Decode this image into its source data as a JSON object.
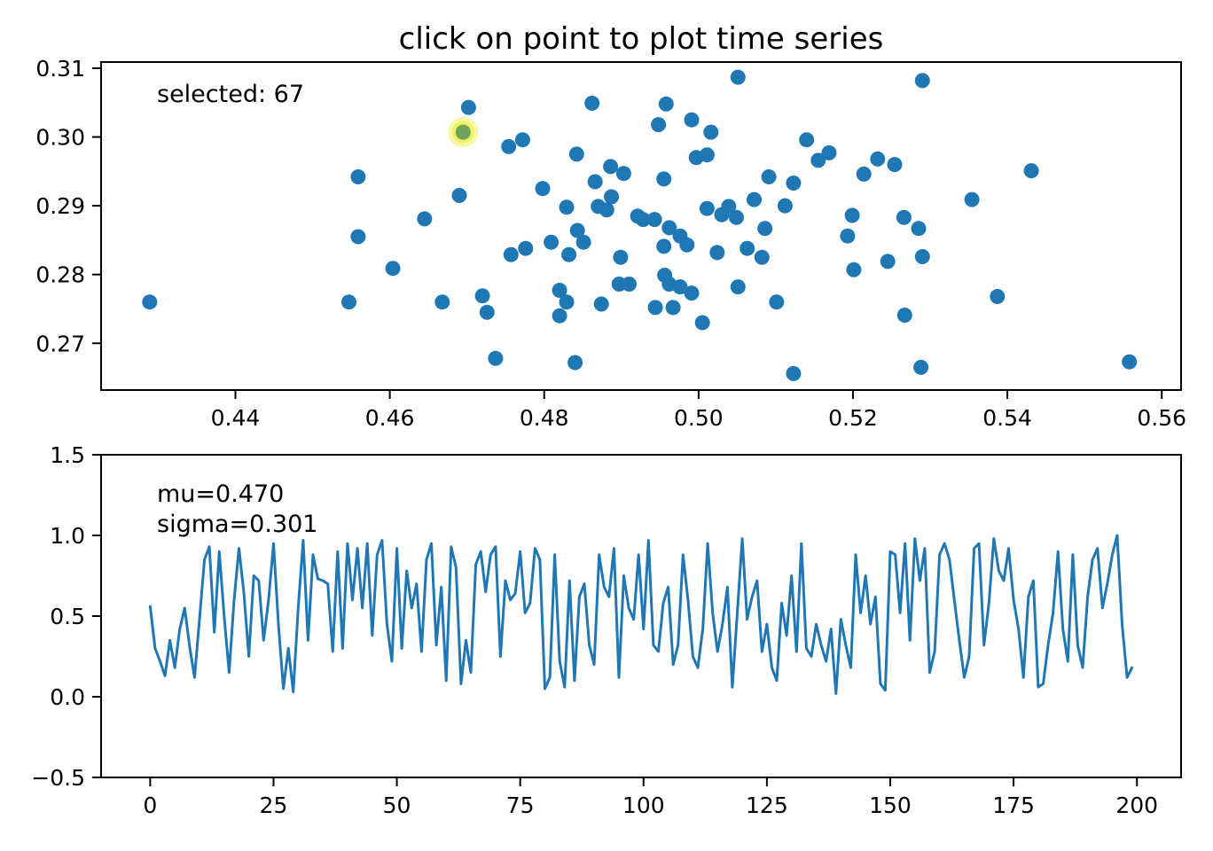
{
  "style": {
    "background": "#ffffff",
    "axis_color": "#000000",
    "text_color": "#000000"
  },
  "chart_data": [
    {
      "type": "scatter",
      "title": "click on point to plot time series",
      "annotation": "selected: 67",
      "selected_index": 67,
      "marker_color": "#1f77b4",
      "highlight": {
        "halo_outer_color": "#f7f9a8",
        "halo_inner_color": "#f0f262",
        "point_color": "#6fa35e"
      },
      "selected_point": {
        "x": 0.4695,
        "y": 0.3007
      },
      "xlim": [
        0.4226,
        0.5625
      ],
      "ylim": [
        0.2632,
        0.3109
      ],
      "xticks": [
        0.44,
        0.46,
        0.48,
        0.5,
        0.52,
        0.54,
        0.56
      ],
      "xtick_labels": [
        "0.44",
        "0.46",
        "0.48",
        "0.50",
        "0.52",
        "0.54",
        "0.56"
      ],
      "yticks": [
        0.27,
        0.28,
        0.29,
        0.3,
        0.31
      ],
      "ytick_labels": [
        "0.27",
        "0.28",
        "0.29",
        "0.30",
        "0.31"
      ],
      "points": [
        [
          0.4289,
          0.276
        ],
        [
          0.4559,
          0.2942
        ],
        [
          0.4559,
          0.2855
        ],
        [
          0.4547,
          0.276
        ],
        [
          0.4604,
          0.2809
        ],
        [
          0.4645,
          0.2881
        ],
        [
          0.4668,
          0.276
        ],
        [
          0.469,
          0.2915
        ],
        [
          0.4702,
          0.3043
        ],
        [
          0.5051,
          0.3087
        ],
        [
          0.4862,
          0.3049
        ],
        [
          0.4958,
          0.3048
        ],
        [
          0.4948,
          0.3018
        ],
        [
          0.4991,
          0.3025
        ],
        [
          0.5016,
          0.3007
        ],
        [
          0.4754,
          0.2986
        ],
        [
          0.4772,
          0.2996
        ],
        [
          0.4842,
          0.2975
        ],
        [
          0.514,
          0.2996
        ],
        [
          0.5155,
          0.2966
        ],
        [
          0.5169,
          0.2977
        ],
        [
          0.4886,
          0.2957
        ],
        [
          0.4903,
          0.2947
        ],
        [
          0.4866,
          0.2935
        ],
        [
          0.4955,
          0.2939
        ],
        [
          0.4997,
          0.297
        ],
        [
          0.5011,
          0.2974
        ],
        [
          0.4798,
          0.2925
        ],
        [
          0.5091,
          0.2942
        ],
        [
          0.5123,
          0.2933
        ],
        [
          0.4887,
          0.2913
        ],
        [
          0.4829,
          0.2898
        ],
        [
          0.487,
          0.2899
        ],
        [
          0.4881,
          0.2894
        ],
        [
          0.4921,
          0.2885
        ],
        [
          0.4928,
          0.288
        ],
        [
          0.4943,
          0.288
        ],
        [
          0.5011,
          0.2896
        ],
        [
          0.503,
          0.2887
        ],
        [
          0.5039,
          0.2899
        ],
        [
          0.5049,
          0.2883
        ],
        [
          0.5072,
          0.2909
        ],
        [
          0.5112,
          0.29
        ],
        [
          0.4843,
          0.2864
        ],
        [
          0.4851,
          0.2847
        ],
        [
          0.4962,
          0.2868
        ],
        [
          0.4976,
          0.2856
        ],
        [
          0.5086,
          0.2867
        ],
        [
          0.4809,
          0.2847
        ],
        [
          0.4757,
          0.2829
        ],
        [
          0.4776,
          0.2838
        ],
        [
          0.4832,
          0.2829
        ],
        [
          0.4955,
          0.2841
        ],
        [
          0.4985,
          0.2843
        ],
        [
          0.5024,
          0.2832
        ],
        [
          0.5063,
          0.2838
        ],
        [
          0.5082,
          0.2825
        ],
        [
          0.4899,
          0.2825
        ],
        [
          0.472,
          0.2769
        ],
        [
          0.4726,
          0.2745
        ],
        [
          0.482,
          0.2777
        ],
        [
          0.4829,
          0.276
        ],
        [
          0.482,
          0.274
        ],
        [
          0.4874,
          0.2757
        ],
        [
          0.4897,
          0.2786
        ],
        [
          0.491,
          0.2786
        ],
        [
          0.4956,
          0.2799
        ],
        [
          0.4962,
          0.2786
        ],
        [
          0.4976,
          0.2782
        ],
        [
          0.4944,
          0.2752
        ],
        [
          0.4967,
          0.2752
        ],
        [
          0.4991,
          0.2773
        ],
        [
          0.5005,
          0.273
        ],
        [
          0.5051,
          0.2782
        ],
        [
          0.5101,
          0.276
        ],
        [
          0.4737,
          0.2678
        ],
        [
          0.484,
          0.2672
        ],
        [
          0.5123,
          0.2656
        ],
        [
          0.529,
          0.3082
        ],
        [
          0.5232,
          0.2968
        ],
        [
          0.5254,
          0.296
        ],
        [
          0.5214,
          0.2946
        ],
        [
          0.5431,
          0.2951
        ],
        [
          0.5354,
          0.2909
        ],
        [
          0.5199,
          0.2886
        ],
        [
          0.5266,
          0.2883
        ],
        [
          0.5193,
          0.2856
        ],
        [
          0.5285,
          0.2867
        ],
        [
          0.5245,
          0.2819
        ],
        [
          0.529,
          0.2826
        ],
        [
          0.5201,
          0.2807
        ],
        [
          0.5387,
          0.2768
        ],
        [
          0.5267,
          0.2741
        ],
        [
          0.5288,
          0.2665
        ],
        [
          0.5558,
          0.2673
        ]
      ]
    },
    {
      "type": "line",
      "annotations": [
        "mu=0.470",
        "sigma=0.301"
      ],
      "line_color": "#1f77b4",
      "x_start": 0,
      "x_step": 1,
      "xlim": [
        -9.95,
        208.95
      ],
      "ylim": [
        -0.5,
        1.5
      ],
      "xticks": [
        0,
        25,
        50,
        75,
        100,
        125,
        150,
        175,
        200
      ],
      "xtick_labels": [
        "0",
        "25",
        "50",
        "75",
        "100",
        "125",
        "150",
        "175",
        "200"
      ],
      "yticks": [
        -0.5,
        0.0,
        0.5,
        1.0,
        1.5
      ],
      "ytick_labels": [
        "−0.5",
        "0.0",
        "0.5",
        "1.0",
        "1.5"
      ],
      "values": [
        0.56,
        0.3,
        0.22,
        0.13,
        0.35,
        0.18,
        0.42,
        0.55,
        0.31,
        0.12,
        0.48,
        0.85,
        0.93,
        0.4,
        0.9,
        0.5,
        0.15,
        0.6,
        0.92,
        0.64,
        0.25,
        0.75,
        0.72,
        0.35,
        0.6,
        0.95,
        0.45,
        0.05,
        0.3,
        0.03,
        0.55,
        0.97,
        0.35,
        0.88,
        0.73,
        0.72,
        0.7,
        0.28,
        0.9,
        0.3,
        0.95,
        0.6,
        0.92,
        0.55,
        0.95,
        0.38,
        0.88,
        0.97,
        0.45,
        0.22,
        0.92,
        0.3,
        0.78,
        0.55,
        0.7,
        0.28,
        0.85,
        0.95,
        0.32,
        0.68,
        0.1,
        0.93,
        0.8,
        0.08,
        0.35,
        0.15,
        0.82,
        0.9,
        0.65,
        0.88,
        0.93,
        0.25,
        0.72,
        0.6,
        0.64,
        0.9,
        0.52,
        0.58,
        0.92,
        0.85,
        0.05,
        0.12,
        0.88,
        0.22,
        0.06,
        0.72,
        0.1,
        0.62,
        0.7,
        0.32,
        0.2,
        0.88,
        0.68,
        0.62,
        0.92,
        0.12,
        0.75,
        0.55,
        0.48,
        0.88,
        0.42,
        0.97,
        0.32,
        0.28,
        0.58,
        0.68,
        0.2,
        0.32,
        0.88,
        0.6,
        0.25,
        0.18,
        0.42,
        0.95,
        0.52,
        0.28,
        0.45,
        0.68,
        0.06,
        0.52,
        0.98,
        0.48,
        0.62,
        0.72,
        0.28,
        0.45,
        0.18,
        0.1,
        0.58,
        0.38,
        0.75,
        0.28,
        0.95,
        0.3,
        0.25,
        0.45,
        0.32,
        0.22,
        0.42,
        0.02,
        0.48,
        0.32,
        0.18,
        0.88,
        0.52,
        0.75,
        0.45,
        0.62,
        0.08,
        0.04,
        0.9,
        0.88,
        0.52,
        0.95,
        0.35,
        0.98,
        0.72,
        0.92,
        0.15,
        0.28,
        0.88,
        0.95,
        0.85,
        0.6,
        0.35,
        0.12,
        0.25,
        0.92,
        0.95,
        0.32,
        0.58,
        0.98,
        0.78,
        0.72,
        0.92,
        0.6,
        0.42,
        0.12,
        0.62,
        0.72,
        0.06,
        0.08,
        0.32,
        0.52,
        0.9,
        0.42,
        0.22,
        0.88,
        0.32,
        0.18,
        0.62,
        0.85,
        0.92,
        0.55,
        0.7,
        0.88,
        1.0,
        0.45,
        0.12,
        0.18
      ]
    }
  ]
}
